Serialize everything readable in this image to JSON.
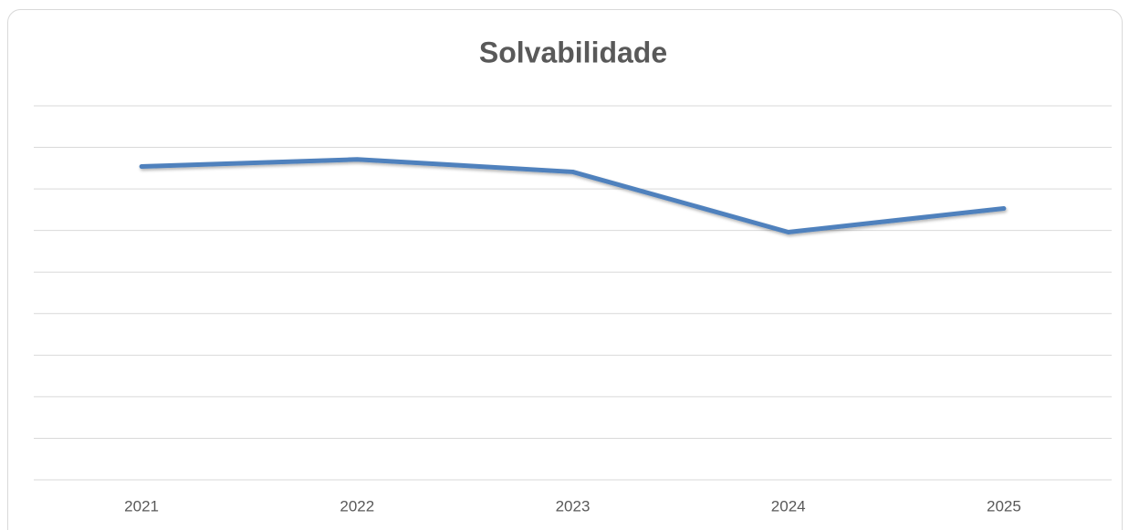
{
  "chart_data": {
    "type": "line",
    "title": "Solvabilidade",
    "categories": [
      "2021",
      "2022",
      "2023",
      "2024",
      "2025"
    ],
    "series": [
      {
        "name": "Solvabilidade",
        "color": "#4f81bd",
        "values": [
          7.54,
          7.71,
          7.41,
          5.96,
          6.53
        ]
      }
    ],
    "ylim": [
      0,
      9
    ],
    "yticks": [
      0,
      1,
      2,
      3,
      4,
      5,
      6,
      7,
      8,
      9
    ],
    "grid": true
  }
}
